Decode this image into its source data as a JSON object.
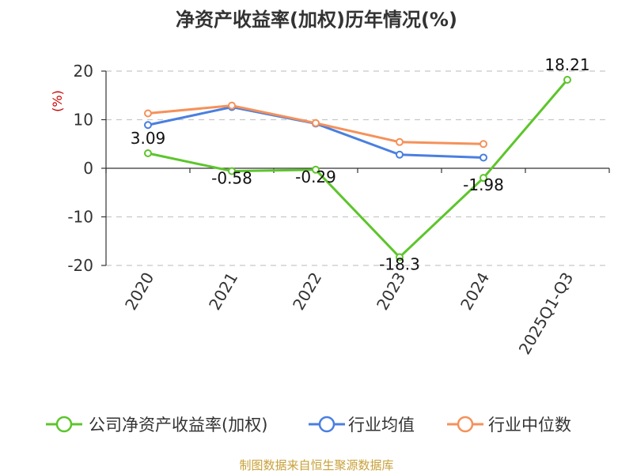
{
  "chart_data": {
    "type": "line",
    "title": "净资产收益率(加权)历年情况(%)",
    "ylabel": "(%)",
    "categories": [
      "2020",
      "2021",
      "2022",
      "2023",
      "2024",
      "2025Q1-Q3"
    ],
    "ylim": [
      -20,
      20
    ],
    "yticks": [
      20,
      10,
      0,
      -10,
      -20
    ],
    "grid": true,
    "legend_position": "bottom",
    "series": [
      {
        "name": "公司净资产收益率(加权)",
        "color": "#5cc52b",
        "values": [
          3.09,
          -0.58,
          -0.29,
          -18.3,
          -1.98,
          18.21
        ],
        "labels": [
          "3.09",
          "-0.58",
          "-0.29",
          "-18.3",
          "-1.98",
          "18.21"
        ]
      },
      {
        "name": "行业均值",
        "color": "#4a7fe0",
        "values": [
          8.9,
          12.6,
          9.2,
          2.8,
          2.2,
          null
        ]
      },
      {
        "name": "行业中位数",
        "color": "#f5915a",
        "values": [
          11.3,
          12.9,
          9.3,
          5.4,
          5.0,
          null
        ]
      }
    ]
  },
  "source": "制图数据来自恒生聚源数据库"
}
